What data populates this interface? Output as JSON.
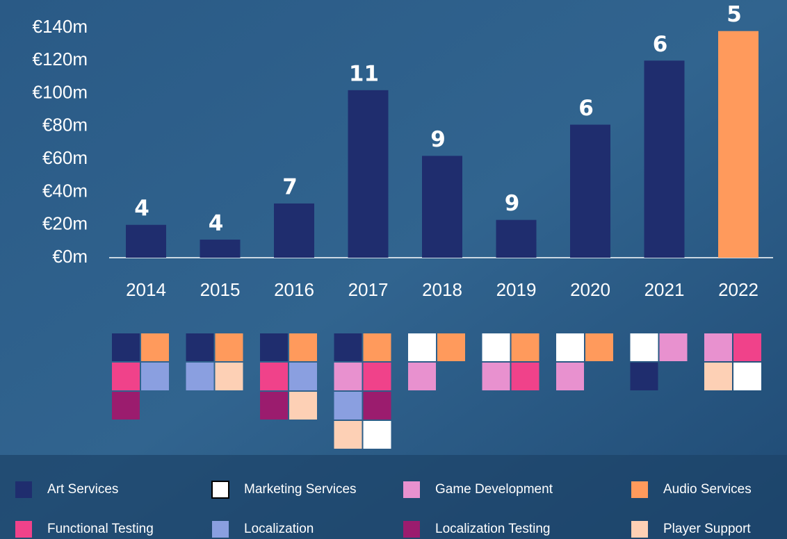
{
  "chart_data": {
    "type": "bar",
    "categories": [
      "2014",
      "2015",
      "2016",
      "2017",
      "2018",
      "2019",
      "2020",
      "2021",
      "2022"
    ],
    "values": [
      20,
      11,
      33,
      102,
      62,
      23,
      81,
      120,
      138
    ],
    "colors": [
      "#1f2d6e",
      "#1f2d6e",
      "#1f2d6e",
      "#1f2d6e",
      "#1f2d6e",
      "#1f2d6e",
      "#1f2d6e",
      "#1f2d6e",
      "#ff9a5c"
    ],
    "counts": [
      4,
      4,
      7,
      11,
      9,
      9,
      6,
      6,
      5
    ],
    "ylim": [
      0,
      140
    ],
    "yticks": [
      {
        "value": 0,
        "label": "€0m"
      },
      {
        "value": 20,
        "label": "€20m"
      },
      {
        "value": 40,
        "label": "€40m"
      },
      {
        "value": 60,
        "label": "€60m"
      },
      {
        "value": 80,
        "label": "€80m"
      },
      {
        "value": 100,
        "label": "€100m"
      },
      {
        "value": 120,
        "label": "€120m"
      },
      {
        "value": 140,
        "label": "€140m"
      }
    ],
    "legend": [
      {
        "name": "Art Services",
        "color": "#1f2d6e"
      },
      {
        "name": "Marketing Services",
        "color": "#ffffff"
      },
      {
        "name": "Game Development",
        "color": "#e891cf"
      },
      {
        "name": "Audio Services",
        "color": "#ff9a5c"
      },
      {
        "name": "Functional Testing",
        "color": "#f0428a"
      },
      {
        "name": "Localization",
        "color": "#8a9fe0"
      },
      {
        "name": "Localization Testing",
        "color": "#9b1c6e"
      },
      {
        "name": "Player Support",
        "color": "#fdd0b5"
      }
    ],
    "services_by_year": [
      [
        "Art Services",
        "Audio Services",
        "Functional Testing",
        "Localization",
        "Localization Testing"
      ],
      [
        "Art Services",
        "Audio Services",
        "Localization",
        "Player Support"
      ],
      [
        "Art Services",
        "Audio Services",
        "Functional Testing",
        "Localization",
        "Localization Testing",
        "Player Support"
      ],
      [
        "Art Services",
        "Audio Services",
        "Game Development",
        "Functional Testing",
        "Localization",
        "Localization Testing",
        "Player Support",
        "Marketing Services"
      ],
      [
        "Marketing Services",
        "Audio Services",
        "Game Development"
      ],
      [
        "Marketing Services",
        "Audio Services",
        "Game Development",
        "Functional Testing"
      ],
      [
        "Marketing Services",
        "Audio Services",
        "Game Development"
      ],
      [
        "Marketing Services",
        "Game Development",
        "Art Services"
      ],
      [
        "Game Development",
        "Functional Testing",
        "Player Support",
        "Marketing Services"
      ]
    ]
  }
}
